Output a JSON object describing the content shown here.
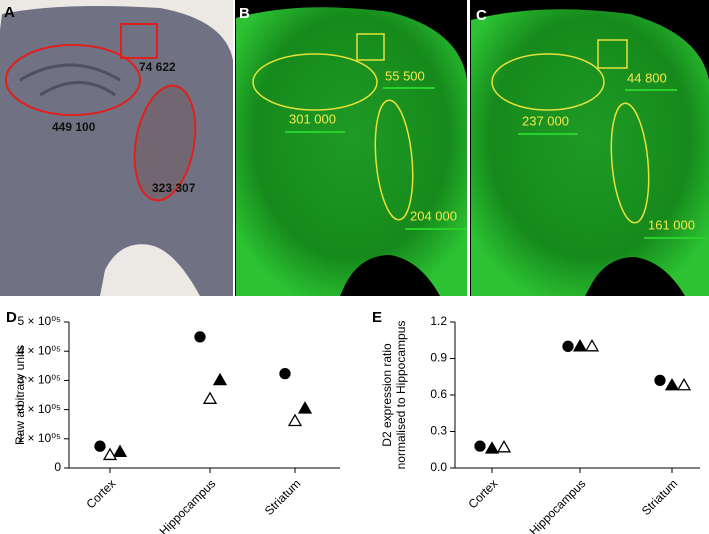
{
  "image_panels": [
    {
      "label": "A",
      "annotations": [
        "74 622",
        "449 100",
        "323 307"
      ]
    },
    {
      "label": "B",
      "annotations": [
        "55 500",
        "301 000",
        "204 000"
      ]
    },
    {
      "label": "C",
      "annotations": [
        "44 800",
        "237 000",
        "161 000"
      ]
    }
  ],
  "chart_data": [
    {
      "type": "scatter",
      "panel": "D",
      "ylabel": [
        "Raw arbitrary units"
      ],
      "categories": [
        "Cortex",
        "Hippocampus",
        "Striatum"
      ],
      "ylim": [
        0,
        500000
      ],
      "yticks": [
        0,
        {
          "value": 100000,
          "label": "1 × 10⁰⁵"
        },
        {
          "value": 200000,
          "label": "2 × 10⁰⁵"
        },
        {
          "value": 300000,
          "label": "3 × 10⁰⁵"
        },
        {
          "value": 400000,
          "label": "4 × 10⁰⁵"
        },
        {
          "value": 500000,
          "label": "5 × 10⁰⁵"
        }
      ],
      "series": [
        {
          "marker": "circle",
          "filled": true,
          "color": "#000000",
          "values": [
            74622,
            449100,
            323307
          ]
        },
        {
          "marker": "triangle",
          "filled": true,
          "color": "#000000",
          "values": [
            55500,
            301000,
            204000
          ]
        },
        {
          "marker": "triangle",
          "filled": false,
          "color": "#000000",
          "values": [
            44800,
            237000,
            161000
          ]
        }
      ]
    },
    {
      "type": "scatter",
      "panel": "E",
      "ylabel": [
        "D2 expression ratio",
        "normalised to Hippocampus"
      ],
      "categories": [
        "Cortex",
        "Hippocampus",
        "Striatum"
      ],
      "ylim": [
        0,
        1.2
      ],
      "yticks": [
        {
          "value": 0,
          "label": "0.0"
        },
        0.3,
        0.6,
        0.9,
        1.2
      ],
      "series": [
        {
          "marker": "circle",
          "filled": true,
          "color": "#000000",
          "values": [
            0.18,
            1.0,
            0.72
          ]
        },
        {
          "marker": "triangle",
          "filled": true,
          "color": "#000000",
          "values": [
            0.16,
            1.0,
            0.68
          ]
        },
        {
          "marker": "triangle",
          "filled": false,
          "color": "#000000",
          "values": [
            0.17,
            1.0,
            0.68
          ]
        }
      ]
    }
  ]
}
